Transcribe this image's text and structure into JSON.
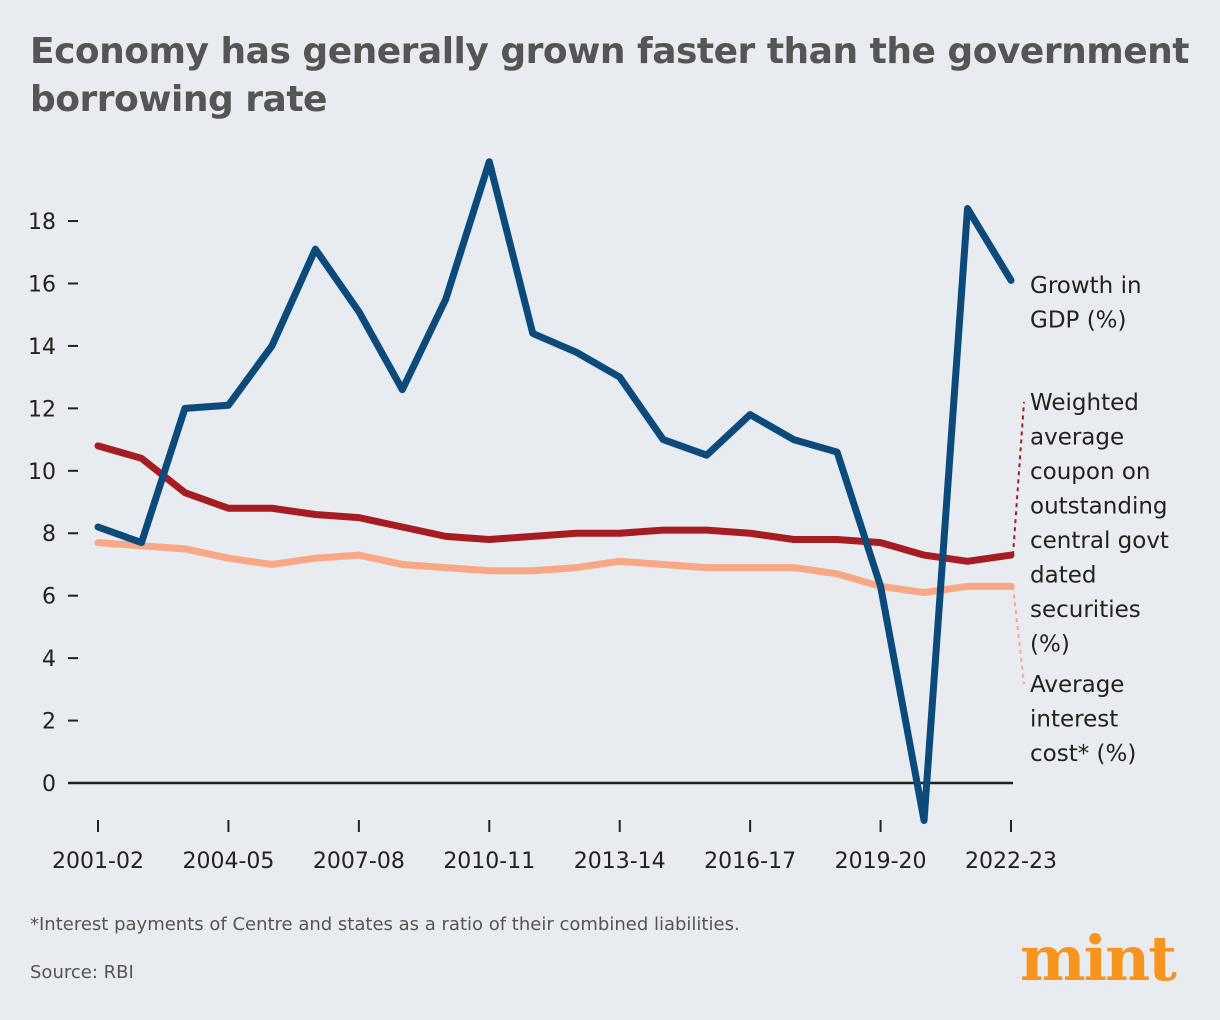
{
  "chart_data": {
    "type": "line",
    "title": "Economy has generally grown faster than the government borrowing rate",
    "x": [
      "2001-02",
      "2002-03",
      "2003-04",
      "2004-05",
      "2005-06",
      "2006-07",
      "2007-08",
      "2008-09",
      "2009-10",
      "2010-11",
      "2011-12",
      "2012-13",
      "2013-14",
      "2014-15",
      "2015-16",
      "2016-17",
      "2017-18",
      "2018-19",
      "2019-20",
      "2020-21",
      "2021-22",
      "2022-23"
    ],
    "x_tick_labels": [
      "2001-02",
      "2004-05",
      "2007-08",
      "2010-11",
      "2013-14",
      "2016-17",
      "2019-20",
      "2022-23"
    ],
    "y_ticks": [
      0,
      2,
      4,
      6,
      8,
      10,
      12,
      14,
      16,
      18
    ],
    "ylim": [
      -1.5,
      20
    ],
    "grid": false,
    "legend": "direct labels at right",
    "series": [
      {
        "name": "Growth in GDP (%)",
        "color": "#0b4a7a",
        "values": [
          8.2,
          7.7,
          12.0,
          12.1,
          14.0,
          17.1,
          15.1,
          12.6,
          15.5,
          19.9,
          14.4,
          13.8,
          13.0,
          11.0,
          10.5,
          11.8,
          11.0,
          10.6,
          6.3,
          -1.2,
          18.4,
          16.1
        ]
      },
      {
        "name": "Weighted average coupon on outstanding central govt dated securities (%)",
        "color": "#a51d21",
        "values": [
          10.8,
          10.4,
          9.3,
          8.8,
          8.8,
          8.6,
          8.5,
          8.2,
          7.9,
          7.8,
          7.9,
          8.0,
          8.0,
          8.1,
          8.1,
          8.0,
          7.8,
          7.8,
          7.7,
          7.3,
          7.1,
          7.3
        ]
      },
      {
        "name": "Average interest cost* (%)",
        "color": "#f8a884",
        "values": [
          7.7,
          7.6,
          7.5,
          7.2,
          7.0,
          7.2,
          7.3,
          7.0,
          6.9,
          6.8,
          6.8,
          6.9,
          7.1,
          7.0,
          6.9,
          6.9,
          6.9,
          6.7,
          6.3,
          6.1,
          6.3,
          6.3
        ]
      }
    ]
  },
  "labels": {
    "gdp": [
      "Growth in",
      "GDP (%)"
    ],
    "coupon": [
      "Weighted",
      "average",
      "coupon on",
      "outstanding",
      "central govt",
      "dated",
      "securities",
      "(%)"
    ],
    "interest": [
      "Average",
      "interest",
      "cost* (%)"
    ]
  },
  "footnote": "*Interest payments of Centre and states as a ratio of their combined liabilities.",
  "source": "Source: RBI",
  "logo": "mint"
}
